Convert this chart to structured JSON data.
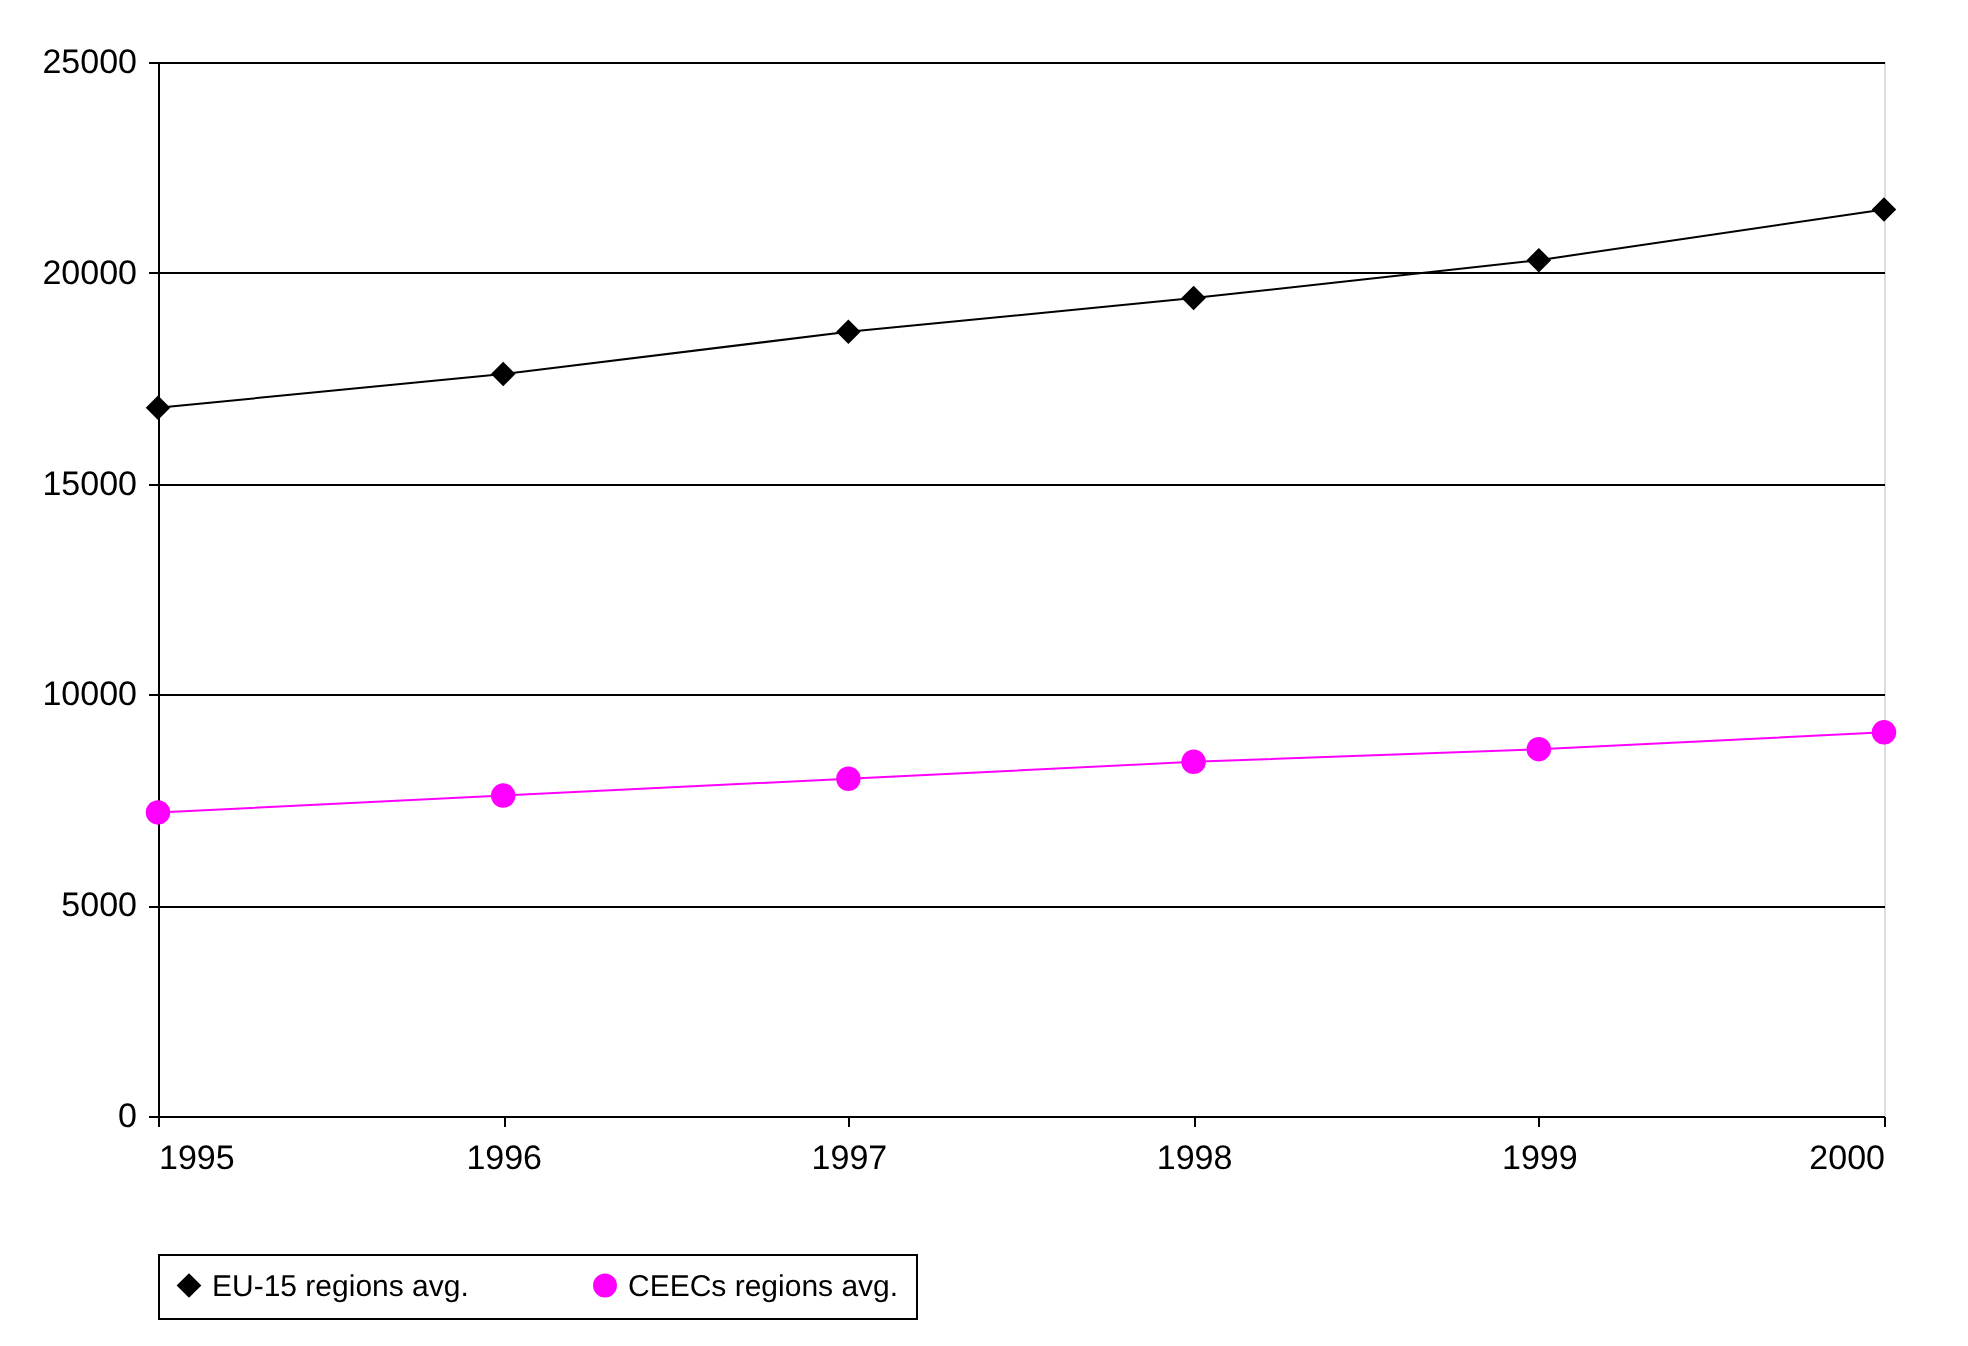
{
  "chart_data": {
    "type": "line",
    "x": [
      1995,
      1996,
      1997,
      1998,
      1999,
      2000
    ],
    "series": [
      {
        "name": "EU-15 regions avg.",
        "color": "#000000",
        "marker": "diamond",
        "values": [
          16800,
          17600,
          18600,
          19400,
          20300,
          21500
        ]
      },
      {
        "name": "CEECs regions avg.",
        "color": "#ff00ff",
        "marker": "circle",
        "values": [
          7200,
          7600,
          8000,
          8400,
          8700,
          9100
        ]
      }
    ],
    "xlim": [
      1995,
      2000
    ],
    "xticks": [
      1995,
      1996,
      1997,
      1998,
      1999,
      2000
    ],
    "ylim": [
      0,
      25000
    ],
    "yticks": [
      0,
      5000,
      10000,
      15000,
      20000,
      25000
    ],
    "grid": "y",
    "legend": "bottom",
    "line_style": "solid"
  }
}
